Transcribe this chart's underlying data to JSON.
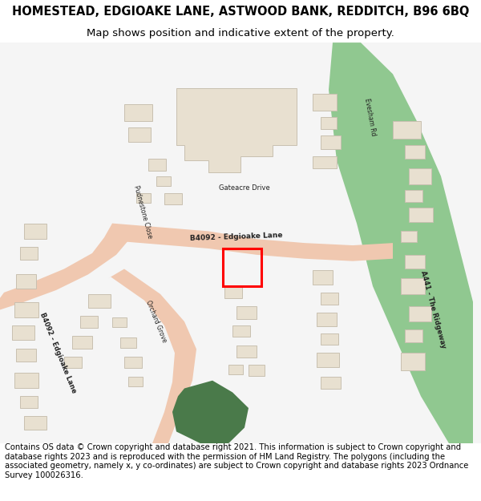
{
  "title_line1": "HOMESTEAD, EDGIOAKE LANE, ASTWOOD BANK, REDDITCH, B96 6BQ",
  "title_line2": "Map shows position and indicative extent of the property.",
  "footer_text": "Contains OS data © Crown copyright and database right 2021. This information is subject to Crown copyright and database rights 2023 and is reproduced with the permission of HM Land Registry. The polygons (including the associated geometry, namely x, y co-ordinates) are subject to Crown copyright and database rights 2023 Ordnance Survey 100026316.",
  "bg_color": "#ffffff",
  "map_bg": "#f5f5f5",
  "road_color_main": "#f0c8b0",
  "road_color_b": "#f0c8b0",
  "road_green": "#90c890",
  "building_color": "#e8e0d0",
  "building_outline": "#c8c0b0",
  "plot_color": "#ff0000",
  "green_area": "#4a7a4a",
  "light_green": "#c8e8c0",
  "road_label_color": "#333333",
  "title_fontsize": 10.5,
  "subtitle_fontsize": 9.5,
  "footer_fontsize": 7.2
}
